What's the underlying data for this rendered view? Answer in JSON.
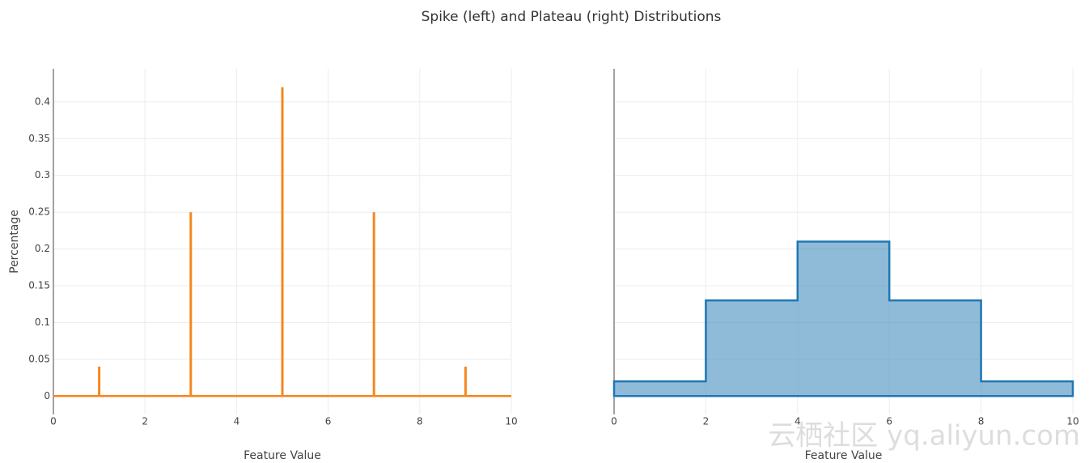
{
  "title": "Spike (left) and Plateau (right) Distributions",
  "watermark": "云栖社区 yq.aliyun.com",
  "chart_data": [
    {
      "type": "spike",
      "x": [
        1,
        3,
        5,
        7,
        9
      ],
      "values": [
        0.04,
        0.25,
        0.42,
        0.25,
        0.04
      ],
      "color": "#f5871f",
      "xlim": [
        0,
        10
      ],
      "xticks": [
        0,
        2,
        4,
        6,
        8,
        10
      ],
      "ylim": [
        -0.025,
        0.445
      ],
      "yticks": [
        0,
        0.05,
        0.1,
        0.15,
        0.2,
        0.25,
        0.3,
        0.35,
        0.4
      ],
      "xlabel": "Feature Value",
      "ylabel": "Percentage",
      "grid": true
    },
    {
      "type": "histogram",
      "bins": [
        0,
        2,
        4,
        6,
        8,
        10
      ],
      "values": [
        0.02,
        0.13,
        0.21,
        0.13,
        0.02
      ],
      "color": "#1f77b4",
      "xlim": [
        0,
        10
      ],
      "xticks": [
        0,
        2,
        4,
        6,
        8,
        10
      ],
      "ylim": [
        -0.025,
        0.445
      ],
      "sharey": true,
      "xlabel": "Feature Value",
      "grid": true
    }
  ]
}
